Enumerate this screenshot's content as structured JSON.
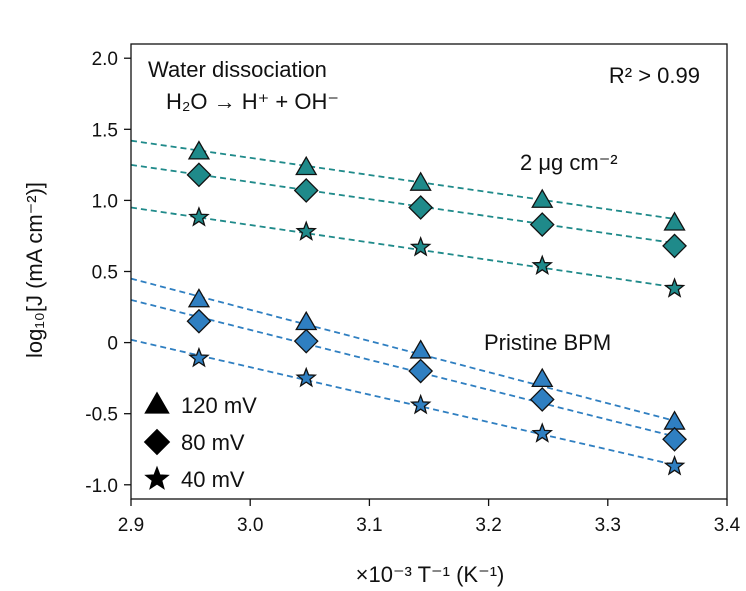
{
  "chart_data": {
    "type": "scatter",
    "xlabel": "×10⁻³ T⁻¹ (K⁻¹)",
    "ylabel": "log₁₀[J (mA cm⁻²)]",
    "xlim": [
      2.9,
      3.4
    ],
    "ylim": [
      -1.1,
      2.1
    ],
    "xticks": [
      2.9,
      3.0,
      3.1,
      3.2,
      3.3,
      3.4
    ],
    "xtick_labels": [
      "2.9",
      "3.0",
      "3.1",
      "3.2",
      "3.3",
      "3.4"
    ],
    "yticks": [
      2.0,
      1.5,
      1.0,
      0.5,
      0.0,
      -0.5,
      -1.0
    ],
    "ytick_labels": [
      "2.0",
      "1.5",
      "1.0",
      "0.5",
      "0",
      "-0.5",
      "-1.0"
    ],
    "annotations": {
      "title_line1": "Water dissociation",
      "title_line2": "H₂O → H⁺ + OH⁻",
      "r2": "R² > 0.99",
      "group_top": "2 μg cm⁻²",
      "group_bottom": "Pristine BPM"
    },
    "legend": [
      {
        "marker": "triangle",
        "label": "120 mV"
      },
      {
        "marker": "diamond",
        "label": "80 mV"
      },
      {
        "marker": "star",
        "label": "40 mV"
      }
    ],
    "legend_position": "bottom-left",
    "colors": {
      "teal": "#1f8a8a",
      "blue": "#2f7fc1",
      "edge": "#111111"
    },
    "series": [
      {
        "name": "2 μg cm⁻², 120 mV",
        "group": "2 μg cm⁻²",
        "marker": "triangle",
        "color": "#1f8a8a",
        "x": [
          2.957,
          3.047,
          3.143,
          3.245,
          3.356
        ],
        "y": [
          1.34,
          1.23,
          1.12,
          1.0,
          0.84
        ],
        "fit": {
          "x": [
            2.9,
            3.356
          ],
          "y": [
            1.42,
            0.87
          ]
        }
      },
      {
        "name": "2 μg cm⁻², 80 mV",
        "group": "2 μg cm⁻²",
        "marker": "diamond",
        "color": "#1f8a8a",
        "x": [
          2.957,
          3.047,
          3.143,
          3.245,
          3.356
        ],
        "y": [
          1.18,
          1.07,
          0.95,
          0.83,
          0.68
        ],
        "fit": {
          "x": [
            2.9,
            3.356
          ],
          "y": [
            1.25,
            0.7
          ]
        }
      },
      {
        "name": "2 μg cm⁻², 40 mV",
        "group": "2 μg cm⁻²",
        "marker": "star",
        "color": "#1f8a8a",
        "x": [
          2.957,
          3.047,
          3.143,
          3.245,
          3.356
        ],
        "y": [
          0.88,
          0.78,
          0.67,
          0.54,
          0.38
        ],
        "fit": {
          "x": [
            2.9,
            3.356
          ],
          "y": [
            0.95,
            0.39
          ]
        }
      },
      {
        "name": "Pristine BPM, 120 mV",
        "group": "Pristine BPM",
        "marker": "triangle",
        "color": "#2f7fc1",
        "x": [
          2.957,
          3.047,
          3.143,
          3.245,
          3.356
        ],
        "y": [
          0.3,
          0.14,
          -0.06,
          -0.26,
          -0.56
        ],
        "fit": {
          "x": [
            2.9,
            3.356
          ],
          "y": [
            0.45,
            -0.55
          ]
        }
      },
      {
        "name": "Pristine BPM, 80 mV",
        "group": "Pristine BPM",
        "marker": "diamond",
        "color": "#2f7fc1",
        "x": [
          2.957,
          3.047,
          3.143,
          3.245,
          3.356
        ],
        "y": [
          0.15,
          0.01,
          -0.2,
          -0.4,
          -0.68
        ],
        "fit": {
          "x": [
            2.9,
            3.356
          ],
          "y": [
            0.3,
            -0.66
          ]
        }
      },
      {
        "name": "Pristine BPM, 40 mV",
        "group": "Pristine BPM",
        "marker": "star",
        "color": "#2f7fc1",
        "x": [
          2.957,
          3.047,
          3.143,
          3.245,
          3.356
        ],
        "y": [
          -0.11,
          -0.25,
          -0.44,
          -0.64,
          -0.87
        ],
        "fit": {
          "x": [
            2.9,
            3.356
          ],
          "y": [
            0.02,
            -0.86
          ]
        }
      }
    ]
  }
}
